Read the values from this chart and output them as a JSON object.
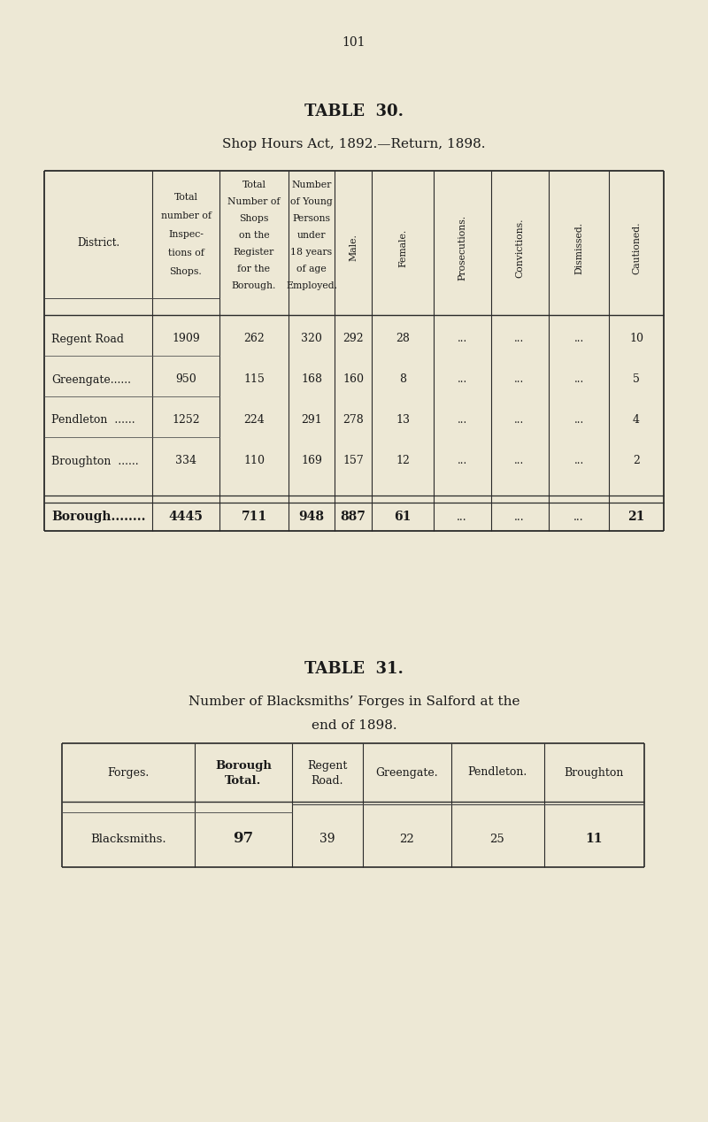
{
  "bg_color": "#ede8d5",
  "text_color": "#1a1a1a",
  "page_number": "101",
  "table30": {
    "title": "TABLE  30.",
    "subtitle": "Shop Hours Act, 1892.—Return, 1898.",
    "col2_header": [
      "Total",
      "number of",
      "Inspec-",
      "tions of",
      "Shops."
    ],
    "col3_header": [
      "Total",
      "Number of",
      "Shops",
      "on the",
      "Register",
      "for the",
      "Borough."
    ],
    "col4_header": [
      "Number",
      "of Young",
      "Persons",
      "under",
      "18 years",
      "of age",
      "Employed."
    ],
    "rotated_headers": [
      "Male.",
      "Female.",
      "Prosecutions.",
      "Convictions.",
      "Dismissed.",
      "Cautioned."
    ],
    "rows": [
      [
        "Regent Road",
        "1909",
        "262",
        "320",
        "292",
        "28",
        "...",
        "...",
        "...",
        "10"
      ],
      [
        "Greengate......",
        "950",
        "115",
        "168",
        "160",
        "8",
        "...",
        "...",
        "...",
        "5"
      ],
      [
        "Pendleton  ......",
        "1252",
        "224",
        "291",
        "278",
        "13",
        "...",
        "...",
        "...",
        "4"
      ],
      [
        "Broughton  ......",
        "334",
        "110",
        "169",
        "157",
        "12",
        "...",
        "...",
        "...",
        "2"
      ]
    ],
    "total": [
      "Borough........",
      "4445",
      "711",
      "948",
      "887",
      "61",
      "...",
      "...",
      "...",
      "21"
    ]
  },
  "table31": {
    "title": "TABLE  31.",
    "subtitle_line1": "Number of Blacksmiths’ Forges in Salford at the",
    "subtitle_line2": "end of 1898.",
    "headers": [
      "Forges.",
      "Borough\nTotal.",
      "Regent\nRoad.",
      "Greengate.",
      "Pendleton.",
      "Broughton"
    ],
    "row": [
      "Blacksmiths.",
      "97",
      "39",
      "22",
      "25",
      "11"
    ]
  }
}
